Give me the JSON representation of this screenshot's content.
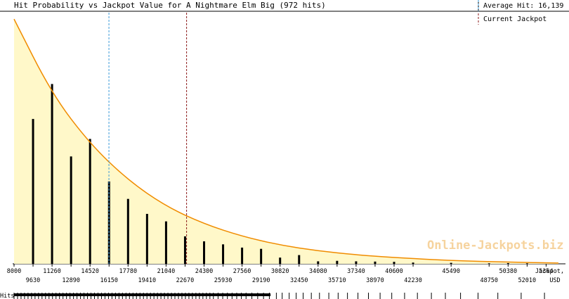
{
  "chart_data": {
    "type": "bar",
    "title": "Hit Probability vs Jackpot Value for A Nightmare Elm Big (972 hits)",
    "xlabel": "Jackpot, USD",
    "xlabel_line1": "Jackpot,",
    "xlabel_line2": "USD",
    "xlim": [
      8000,
      54700
    ],
    "tick_labels_row1": [
      "8000",
      "11260",
      "14520",
      "17780",
      "21040",
      "24300",
      "27560",
      "30820",
      "34080",
      "37340",
      "40600",
      "45490",
      "50380",
      "5364"
    ],
    "tick_labels_row2": [
      "9630",
      "12890",
      "16150",
      "19410",
      "22670",
      "25930",
      "29190",
      "32450",
      "35710",
      "38970",
      "42230",
      "48750",
      "52010",
      "USD"
    ],
    "bars": {
      "x": [
        9630,
        11260,
        12890,
        14520,
        16150,
        17780,
        19410,
        21040,
        22670,
        24300,
        25930,
        27560,
        29190,
        30820,
        32450,
        34080,
        35710,
        37340,
        38970,
        40600,
        42230,
        45490,
        48750,
        50380,
        52010
      ],
      "values": [
        58,
        72,
        43,
        50,
        33,
        26,
        20,
        17,
        11,
        9,
        7.8,
        6.5,
        6,
        2.5,
        3.5,
        1,
        1.2,
        1,
        0.9,
        0.8,
        0.5,
        0.4,
        0.2,
        0.3,
        0.2
      ]
    },
    "curve": {
      "x": [
        8000,
        11260,
        14520,
        17780,
        21040,
        24300,
        27560,
        30820,
        34080,
        37340,
        40600,
        45490,
        50380,
        54700
      ],
      "y": [
        98,
        68,
        48,
        33.5,
        23,
        16,
        11,
        7.5,
        5.2,
        3.6,
        2.5,
        1.3,
        0.7,
        0.3
      ]
    },
    "ylim": [
      0,
      100
    ],
    "average_hit": 16139,
    "current_jackpot": 22800,
    "legend": {
      "average_label": "Average Hit: 16,139",
      "current_label": "Current Jackpot"
    },
    "colors": {
      "curve": "#f08c00",
      "fill": "#fff8c9",
      "bar": "#000000",
      "average_line": "#3a9ad9",
      "current_line": "#8b1a1a"
    },
    "watermark": "Online-Jackpots.biz",
    "hits_label": "Hits",
    "hits_x": [
      8000,
      8300,
      8600,
      8900,
      9200,
      9500,
      9800,
      10100,
      10400,
      10700,
      11000,
      11300,
      11600,
      11900,
      12200,
      12500,
      12800,
      13100,
      13400,
      13700,
      14000,
      14300,
      14600,
      14900,
      15200,
      15500,
      15800,
      16100,
      16400,
      16700,
      17000,
      17300,
      17600,
      17900,
      18200,
      18500,
      18800,
      19100,
      19400,
      19700,
      20000,
      20300,
      20600,
      20900,
      21200,
      21500,
      21800,
      22100,
      22400,
      22700,
      23000,
      23300,
      23600,
      23900,
      24200,
      24500,
      24800,
      25100,
      25500,
      25900,
      26300,
      26700,
      27100,
      27500,
      27900,
      28400,
      28900,
      29400,
      29900,
      30500,
      31000,
      31600,
      32200,
      32800,
      33500,
      34200,
      35000,
      35800,
      36600,
      37500,
      38400,
      39400,
      40400,
      41500,
      42600,
      43800,
      45000,
      46300,
      47800,
      49500,
      51500,
      53500
    ]
  }
}
